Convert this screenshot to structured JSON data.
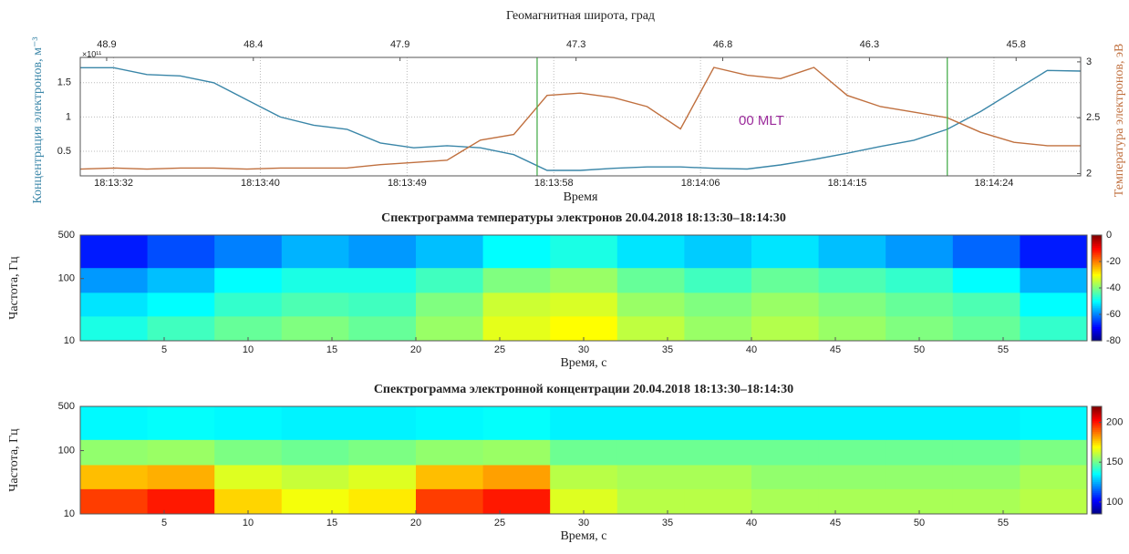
{
  "chart_data": [
    {
      "type": "line",
      "x2label": "Геомагнитная широта, град",
      "xlabel": "Время",
      "ylabel": "Концентрация электронов, м⁻³",
      "ylabel_note": "×10¹¹",
      "y2label": "Температура электронов, эВ",
      "annotation": "00 MLT",
      "annotation_color": "#9b2a9b",
      "grid": true,
      "x": [
        0,
        2,
        4,
        6,
        8,
        10,
        12,
        14,
        16,
        18,
        20,
        22,
        24,
        26,
        28,
        30,
        32,
        34,
        36,
        38,
        40,
        42,
        44,
        46,
        48,
        50,
        52,
        54,
        56,
        58,
        60
      ],
      "xlim": [
        0,
        60
      ],
      "xticks": [
        {
          "value": 2,
          "label": "18:13:32"
        },
        {
          "value": 10.8,
          "label": "18:13:40"
        },
        {
          "value": 19.6,
          "label": "18:13:49"
        },
        {
          "value": 28.4,
          "label": "18:13:58"
        },
        {
          "value": 37.2,
          "label": "18:14:06"
        },
        {
          "value": 46,
          "label": "18:14:15"
        },
        {
          "value": 54.8,
          "label": "18:14:24"
        }
      ],
      "x2lim": [
        48.99,
        45.58
      ],
      "x2ticks": [
        48.9,
        48.4,
        47.9,
        47.3,
        46.8,
        46.3,
        45.8
      ],
      "ylim": [
        0.14,
        1.87
      ],
      "yticks": [
        0.5,
        1,
        1.5
      ],
      "y2lim": [
        1.98,
        3.04
      ],
      "y2ticks": [
        2,
        2.5,
        3
      ],
      "vlines": [
        27.4,
        52.0
      ],
      "vline_color": "#4caf50",
      "series": [
        {
          "name": "Концентрация электронов",
          "color": "#3a86a8",
          "values": [
            1.72,
            1.72,
            1.62,
            1.6,
            1.5,
            1.25,
            1.0,
            0.88,
            0.82,
            0.62,
            0.55,
            0.58,
            0.55,
            0.45,
            0.22,
            0.22,
            0.25,
            0.27,
            0.27,
            0.25,
            0.24,
            0.3,
            0.38,
            0.47,
            0.57,
            0.66,
            0.82,
            1.08,
            1.38,
            1.68,
            1.67
          ]
        },
        {
          "name": "Температура электронов",
          "color": "#c0703f",
          "axis": "y2",
          "values": [
            2.04,
            2.05,
            2.04,
            2.05,
            2.05,
            2.04,
            2.05,
            2.05,
            2.05,
            2.08,
            2.1,
            2.12,
            2.3,
            2.35,
            2.7,
            2.72,
            2.68,
            2.6,
            2.4,
            2.95,
            2.88,
            2.85,
            2.95,
            2.7,
            2.6,
            2.55,
            2.5,
            2.37,
            2.28,
            2.25,
            2.25
          ]
        }
      ]
    },
    {
      "type": "heatmap",
      "title": "Спектрограмма температуры электронов 20.04.2018  18:13:30–18:14:30",
      "xlabel": "Время, с",
      "ylabel": "Частота, Гц",
      "colormap": "jet",
      "xlim": [
        0,
        60
      ],
      "xticks": [
        5,
        10,
        15,
        20,
        25,
        30,
        35,
        40,
        45,
        50,
        55
      ],
      "ylim": [
        10,
        500
      ],
      "ylog": true,
      "yticks": [
        10,
        100,
        500
      ],
      "xbins": [
        0,
        4,
        8,
        12,
        16,
        20,
        24,
        28,
        32,
        36,
        40,
        44,
        48,
        52,
        56,
        60
      ],
      "ybins": [
        10,
        25,
        60,
        150,
        500
      ],
      "zlim": [
        -80,
        0
      ],
      "zticks": [
        0,
        -20,
        -40,
        -60,
        -80
      ],
      "z": [
        [
          -48,
          -45,
          -42,
          -40,
          -42,
          -38,
          -32,
          -30,
          -35,
          -38,
          -36,
          -38,
          -40,
          -42,
          -46
        ],
        [
          -52,
          -50,
          -46,
          -44,
          -45,
          -40,
          -34,
          -33,
          -38,
          -40,
          -38,
          -40,
          -42,
          -44,
          -50
        ],
        [
          -58,
          -55,
          -50,
          -48,
          -48,
          -45,
          -40,
          -38,
          -42,
          -45,
          -42,
          -44,
          -46,
          -50,
          -56
        ],
        [
          -68,
          -64,
          -60,
          -56,
          -58,
          -55,
          -50,
          -48,
          -52,
          -54,
          -52,
          -55,
          -58,
          -62,
          -68
        ]
      ]
    },
    {
      "type": "heatmap",
      "title": "Спектрограмма электронной концентрации 20.04.2018  18:13:30–18:14:30",
      "xlabel": "Время, с",
      "ylabel": "Частота, Гц",
      "colormap": "jet",
      "xlim": [
        0,
        60
      ],
      "xticks": [
        5,
        10,
        15,
        20,
        25,
        30,
        35,
        40,
        45,
        50,
        55
      ],
      "ylim": [
        10,
        500
      ],
      "ylog": true,
      "yticks": [
        10,
        100,
        500
      ],
      "xbins": [
        0,
        4,
        8,
        12,
        16,
        20,
        24,
        28,
        32,
        36,
        40,
        44,
        48,
        52,
        56,
        60
      ],
      "ybins": [
        10,
        25,
        60,
        150,
        500
      ],
      "zlim": [
        85,
        220
      ],
      "zticks": [
        100,
        150,
        200
      ],
      "z": [
        [
          195,
          200,
          175,
          168,
          172,
          195,
          200,
          165,
          160,
          160,
          158,
          158,
          158,
          158,
          160
        ],
        [
          178,
          180,
          165,
          162,
          165,
          178,
          182,
          160,
          158,
          158,
          155,
          155,
          155,
          155,
          158
        ],
        [
          155,
          156,
          152,
          150,
          152,
          155,
          156,
          150,
          150,
          150,
          150,
          150,
          150,
          150,
          152
        ],
        [
          135,
          136,
          135,
          134,
          134,
          135,
          136,
          134,
          134,
          134,
          134,
          134,
          134,
          134,
          135
        ]
      ]
    }
  ]
}
